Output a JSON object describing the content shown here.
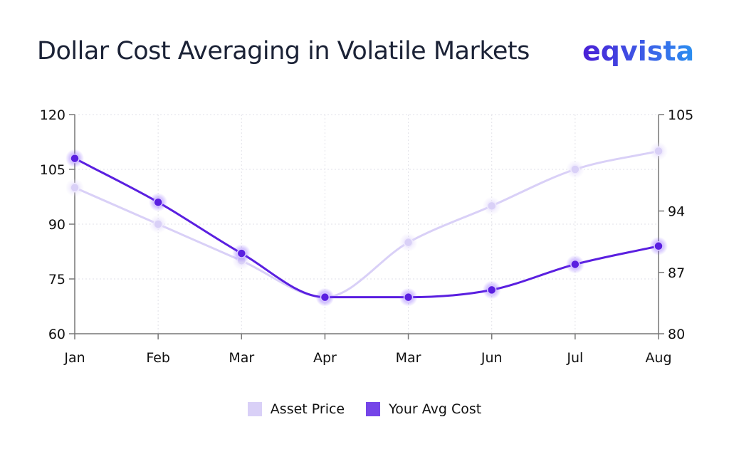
{
  "header": {
    "title": "Dollar Cost Averaging in Volatile Markets",
    "logo": "eqvista"
  },
  "chart_data": {
    "type": "line",
    "title": "Dollar Cost Averaging in Volatile Markets",
    "categories": [
      "Jan",
      "Feb",
      "Mar",
      "Apr",
      "Mar",
      "Jun",
      "Jul",
      "Aug"
    ],
    "series": [
      {
        "name": "Asset Price",
        "color": "#d9d0f7",
        "values": [
          100,
          90,
          80,
          70,
          85,
          95,
          105,
          110
        ]
      },
      {
        "name": "Your Avg Cost",
        "color": "#5a1fe0",
        "values": [
          108,
          96,
          82,
          70,
          70,
          72,
          79,
          84
        ]
      }
    ],
    "y_left": {
      "range": [
        60,
        120
      ],
      "ticks": [
        60,
        75,
        90,
        105,
        120
      ]
    },
    "y_right": {
      "range": [
        80,
        105
      ],
      "ticks": [
        80,
        87,
        94,
        105
      ]
    },
    "grid": true,
    "legend": "bottom"
  },
  "legend": {
    "items": [
      {
        "label": "Asset Price",
        "color": "#d9d0f7"
      },
      {
        "label": "Your Avg Cost",
        "color": "#7545e8"
      }
    ]
  }
}
